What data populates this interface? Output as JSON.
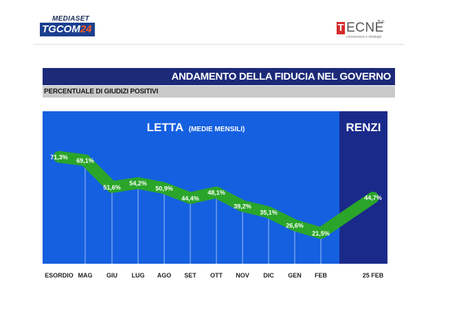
{
  "header": {
    "left_logo": {
      "top_text": "MEDIASET",
      "main_text": "TGCOM",
      "main_number": "24"
    },
    "right_logo": {
      "first_letter": "T",
      "rest": "ECNÈ",
      "registered": "®",
      "tagline": "conoscenza e strategie"
    }
  },
  "title": "ANDAMENTO DELLA FIDUCIA NEL GOVERNO",
  "subtitle": "PERCENTUALE DI GIUDIZI POSITIVI",
  "colors": {
    "panel": "#1560e0",
    "renzi_panel": "#1a2a8a",
    "line": "#2aa52a",
    "title_bar": "#1c2a78"
  },
  "chart_data": {
    "type": "line",
    "sections": [
      {
        "label": "LETTA",
        "note": "(MEDIE MENSILI)"
      },
      {
        "label": "RENZI"
      }
    ],
    "categories": [
      "ESORDIO",
      "MAG",
      "GIU",
      "LUG",
      "AGO",
      "SET",
      "OTT",
      "NOV",
      "DIC",
      "GEN",
      "FEB",
      "25 FEB"
    ],
    "values": [
      71.3,
      69.1,
      51.6,
      54.2,
      50.9,
      44.4,
      48.1,
      39.2,
      35.1,
      26.6,
      21.5,
      44.7
    ],
    "data_labels": [
      "71,3%",
      "69,1%",
      "51,6%",
      "54,2%",
      "50,9%",
      "44,4%",
      "48,1%",
      "39,2%",
      "35,1%",
      "26,6%",
      "21,5%",
      "44,7%"
    ],
    "grid": "vertical"
  }
}
